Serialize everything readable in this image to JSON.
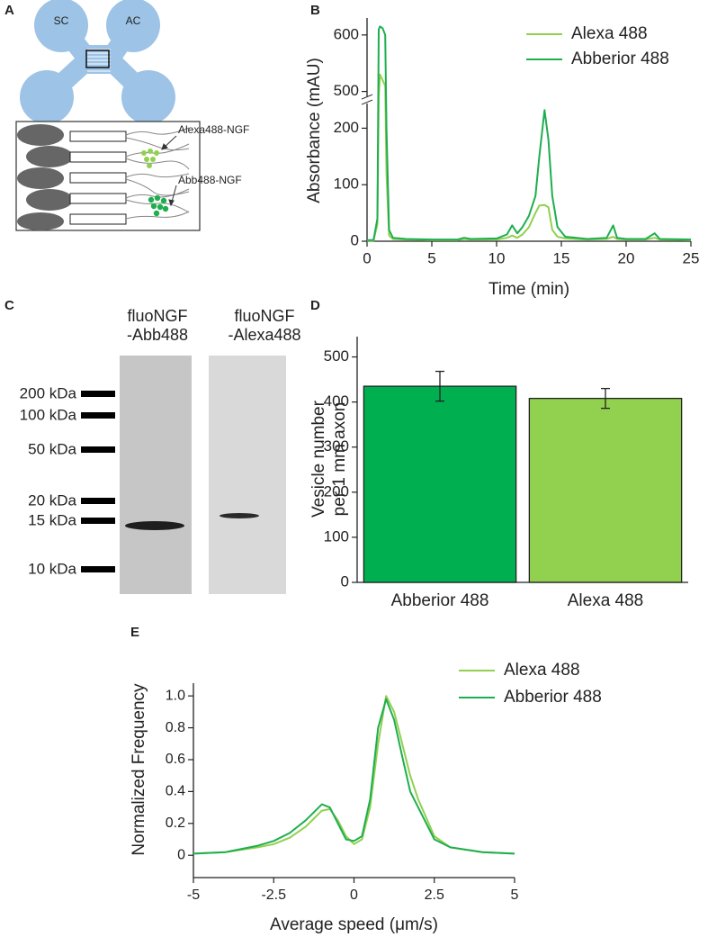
{
  "diagram": {
    "panel": "A",
    "labels": [
      "SC",
      "AC"
    ],
    "callouts": [
      "Alexa488-NGF",
      "Abb488-NGF"
    ]
  },
  "gel": {
    "panel": "C",
    "lanes": [
      [
        "fluoNGF",
        "-Abb488"
      ],
      [
        "fluoNGF",
        "-Alexa488"
      ]
    ],
    "markers": [
      "200 kDa",
      "100 kDa",
      "50 kDa",
      "20 kDa",
      "15 kDa",
      "10 kDa"
    ]
  },
  "chart_data": [
    {
      "type": "line",
      "panel": "B",
      "xlabel": "Time (min)",
      "ylabel": "Absorbance (mAU)",
      "xlim": [
        0,
        25
      ],
      "xticks": [
        0,
        5,
        10,
        15,
        20,
        25
      ],
      "ylim": [
        0,
        630
      ],
      "ybreak": [
        245,
        490
      ],
      "yticks": [
        0,
        100,
        200,
        500,
        600
      ],
      "x": [
        0,
        0.5,
        0.8,
        0.9,
        1.0,
        1.2,
        1.4,
        1.5,
        1.7,
        2,
        3,
        5,
        7,
        7.5,
        8,
        10,
        10.8,
        11.2,
        11.6,
        12,
        12.5,
        13,
        13.3,
        13.7,
        14,
        14.3,
        14.7,
        15.3,
        17,
        18.5,
        19,
        19.3,
        20,
        21.5,
        22.2,
        22.6,
        25
      ],
      "series": [
        {
          "name": "Alexa 488",
          "color": "#92d050",
          "values": [
            1,
            1,
            30,
            480,
            530,
            520,
            510,
            120,
            10,
            4,
            3,
            2,
            2,
            4,
            3,
            3,
            6,
            10,
            6,
            12,
            25,
            50,
            63,
            64,
            60,
            20,
            8,
            5,
            3,
            4,
            8,
            4,
            3,
            3,
            6,
            3,
            2
          ]
        },
        {
          "name": "Abberior 488",
          "color": "#1fae4f",
          "values": [
            2,
            2,
            40,
            610,
            615,
            612,
            600,
            200,
            20,
            6,
            4,
            3,
            3,
            6,
            4,
            5,
            12,
            28,
            14,
            25,
            45,
            80,
            150,
            232,
            180,
            80,
            25,
            8,
            4,
            6,
            28,
            6,
            4,
            4,
            14,
            4,
            3
          ]
        }
      ]
    },
    {
      "type": "bar",
      "panel": "D",
      "ylabel": [
        "Vesicle number",
        "per 1 mm axon"
      ],
      "categories": [
        "Abberior 488",
        "Alexa 488"
      ],
      "values": [
        435,
        408
      ],
      "errors": [
        33,
        22
      ],
      "colors": [
        "#00b050",
        "#92d050"
      ],
      "ylim": [
        0,
        545
      ],
      "yticks": [
        0,
        100,
        200,
        300,
        400,
        500
      ]
    },
    {
      "type": "line",
      "panel": "E",
      "xlabel": "Average speed (μm/s)",
      "ylabel": "Normalized Frequency",
      "xlim": [
        -5,
        5
      ],
      "xticks": [
        -5,
        -2.5,
        0,
        2.5,
        5
      ],
      "ylim": [
        -0.14,
        1.08
      ],
      "yticks": [
        0,
        0.2,
        0.4,
        0.6,
        0.8,
        {
          "value": 1,
          "label": "1.0"
        }
      ],
      "x": [
        -5,
        -4,
        -3,
        -2.5,
        -2,
        -1.5,
        -1.25,
        -1,
        -0.75,
        -0.5,
        -0.25,
        0,
        0.25,
        0.5,
        0.75,
        1,
        1.25,
        1.5,
        1.75,
        2,
        2.5,
        3,
        4,
        5
      ],
      "series": [
        {
          "name": "Alexa 488",
          "color": "#92d050",
          "values": [
            0.01,
            0.02,
            0.05,
            0.07,
            0.11,
            0.18,
            0.23,
            0.28,
            0.29,
            0.22,
            0.12,
            0.07,
            0.1,
            0.3,
            0.7,
            1.0,
            0.9,
            0.7,
            0.5,
            0.35,
            0.12,
            0.05,
            0.02,
            0.01
          ]
        },
        {
          "name": "Abberior 488",
          "color": "#1fae4f",
          "values": [
            0.01,
            0.02,
            0.06,
            0.09,
            0.14,
            0.22,
            0.27,
            0.32,
            0.3,
            0.2,
            0.1,
            0.09,
            0.12,
            0.35,
            0.8,
            0.98,
            0.85,
            0.62,
            0.4,
            0.3,
            0.1,
            0.05,
            0.02,
            0.01
          ]
        }
      ]
    }
  ]
}
